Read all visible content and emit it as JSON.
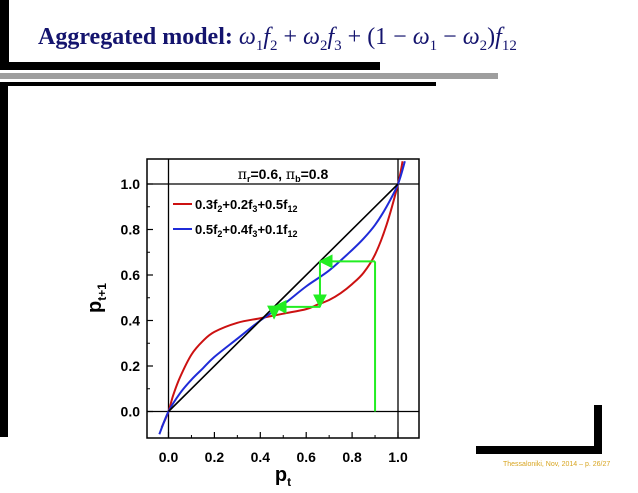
{
  "slide": {
    "title_bold": "Aggregated model:",
    "title_formula": "ω1f2 + ω2f3 + (1 − ω1 − ω2)f12",
    "footer": "Thessaloniki, Nov, 2014 – p. 26/27"
  },
  "colors": {
    "title": "#14146e",
    "red_series": "#cc1111",
    "blue_series": "#1f2bd8",
    "diagonal": "#000000",
    "cobweb": "#22ee22",
    "footer": "#d8a520"
  },
  "chart_data": {
    "type": "line",
    "xlabel": "p_t",
    "ylabel": "p_{t+1}",
    "xlim": [
      -0.05,
      1.1
    ],
    "ylim": [
      -0.1,
      1.1
    ],
    "xticks": [
      "0.0",
      "0.2",
      "0.4",
      "0.6",
      "0.8",
      "1.0"
    ],
    "yticks": [
      "0.0",
      "0.2",
      "0.4",
      "0.6",
      "0.8",
      "1.0"
    ],
    "legend_title": "πr=0.6, πb=0.8",
    "legend_position": "top",
    "series": [
      {
        "name": "0.3f2+0.2f3+0.5f12",
        "color": "#cc1111",
        "x": [
          -0.03,
          0.0,
          0.02,
          0.05,
          0.1,
          0.15,
          0.2,
          0.3,
          0.4,
          0.5,
          0.6,
          0.65,
          0.7,
          0.75,
          0.8,
          0.85,
          0.9,
          0.95,
          1.0,
          1.02
        ],
        "y": [
          -0.07,
          0.0,
          0.07,
          0.15,
          0.25,
          0.31,
          0.35,
          0.39,
          0.41,
          0.43,
          0.45,
          0.47,
          0.49,
          0.52,
          0.56,
          0.61,
          0.69,
          0.82,
          1.0,
          1.1
        ]
      },
      {
        "name": "0.5f2+0.4f3+0.1f12",
        "color": "#1f2bd8",
        "x": [
          -0.04,
          0.0,
          0.05,
          0.1,
          0.15,
          0.2,
          0.3,
          0.4,
          0.5,
          0.6,
          0.7,
          0.8,
          0.85,
          0.9,
          0.95,
          1.0,
          1.03
        ],
        "y": [
          -0.1,
          0.0,
          0.08,
          0.14,
          0.19,
          0.24,
          0.32,
          0.4,
          0.47,
          0.55,
          0.62,
          0.71,
          0.76,
          0.82,
          0.9,
          1.0,
          1.1
        ]
      },
      {
        "name": "diagonal",
        "color": "#000000",
        "x": [
          0.0,
          1.0
        ],
        "y": [
          0.0,
          1.0
        ]
      }
    ],
    "cobweb": {
      "color": "#22ee22",
      "path": [
        [
          0.9,
          0.0
        ],
        [
          0.9,
          0.66
        ],
        [
          0.66,
          0.66
        ],
        [
          0.66,
          0.46
        ],
        [
          0.46,
          0.46
        ],
        [
          0.46,
          0.41
        ]
      ]
    },
    "reference_lines": {
      "horizontal_y": [
        0.0,
        1.0
      ],
      "vertical_x": [
        0.0,
        1.0
      ]
    }
  }
}
